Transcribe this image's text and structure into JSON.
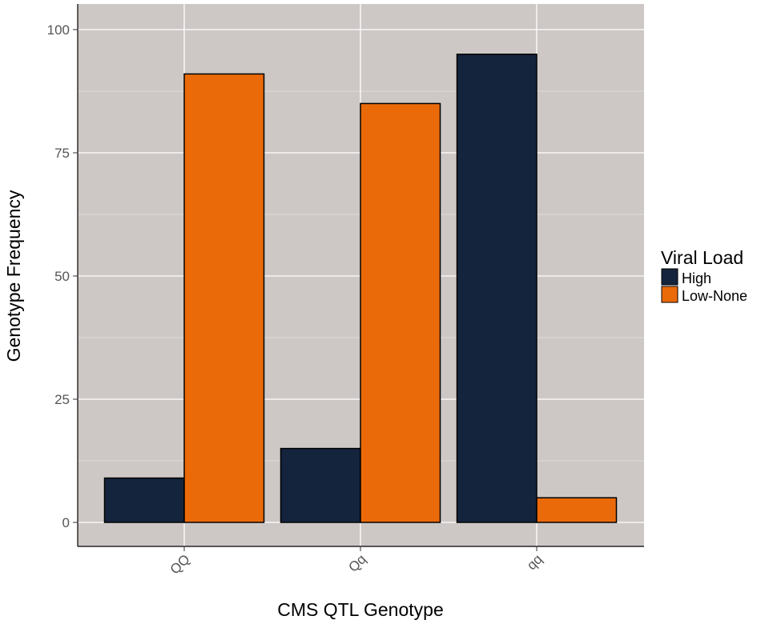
{
  "chart_data": {
    "type": "bar",
    "title": "",
    "xlabel": "CMS QTL Genotype",
    "ylabel": "Genotype Frequency",
    "categories": [
      "QQ",
      "Qq",
      "qq"
    ],
    "series": [
      {
        "name": "High",
        "color": "#15243d",
        "values": [
          9,
          15,
          95
        ]
      },
      {
        "name": "Low-None",
        "color": "#ea6a0a",
        "values": [
          91,
          85,
          5
        ]
      }
    ],
    "ylim": [
      0,
      100
    ],
    "yticks": [
      0,
      25,
      50,
      75,
      100
    ],
    "grid": true,
    "legend": {
      "title": "Viral Load",
      "placement": "right"
    },
    "panel_color": "#cdc8c6"
  }
}
